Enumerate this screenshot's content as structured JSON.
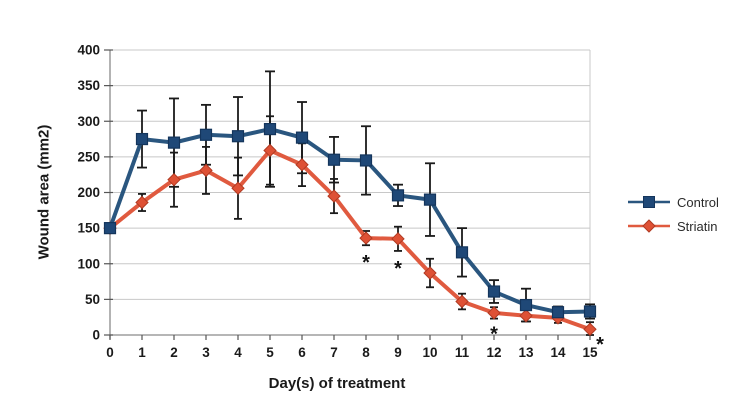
{
  "chart_data": {
    "type": "line",
    "title": "",
    "xlabel": "Day(s) of treatment",
    "ylabel": "Wound area (mm2)",
    "x": [
      0,
      1,
      2,
      3,
      4,
      5,
      6,
      7,
      8,
      9,
      10,
      11,
      12,
      13,
      14,
      15
    ],
    "xlim": [
      0,
      15
    ],
    "ylim": [
      0,
      400
    ],
    "ytick_step": 50,
    "grid": "horizontal",
    "legend_position": "middle-right",
    "axis_color": "#8a8a8a",
    "gridline_color": "#c8c8c8",
    "error_bar_color": "#1a1a1a",
    "series": [
      {
        "name": "Control",
        "marker": "square",
        "color": "#1f4877",
        "marker_edge_color": "#14355c",
        "line_color": "#2a567f",
        "values": [
          150,
          275,
          270,
          281,
          279,
          289,
          277,
          246,
          245,
          196,
          190,
          116,
          61,
          42,
          32,
          33
        ],
        "error_bars": [
          0,
          40,
          62,
          42,
          55,
          81,
          50,
          32,
          48,
          15,
          51,
          34,
          16,
          23,
          8,
          10
        ]
      },
      {
        "name": "Striatin",
        "marker": "diamond",
        "color": "#de5135",
        "marker_edge_color": "#b03a22",
        "line_color": "#e05a3f",
        "values": [
          150,
          186,
          218,
          231,
          206,
          259,
          239,
          195,
          136,
          135,
          87,
          47,
          31,
          27,
          24,
          8
        ],
        "error_bars": [
          0,
          12,
          38,
          33,
          43,
          48,
          30,
          24,
          10,
          17,
          20,
          11,
          8,
          8,
          7,
          10
        ]
      }
    ],
    "annotations": [
      {
        "series": "Striatin",
        "day": 8,
        "symbol": "*",
        "dx": 0,
        "dy": 0
      },
      {
        "series": "Striatin",
        "day": 9,
        "symbol": "*",
        "dx": 0,
        "dy": 0
      },
      {
        "series": "Striatin",
        "day": 12,
        "symbol": "*",
        "dx": 0,
        "dy": -2
      },
      {
        "series": "Striatin",
        "day": 15,
        "symbol": "*",
        "dx": 10,
        "dy": -8
      }
    ]
  }
}
